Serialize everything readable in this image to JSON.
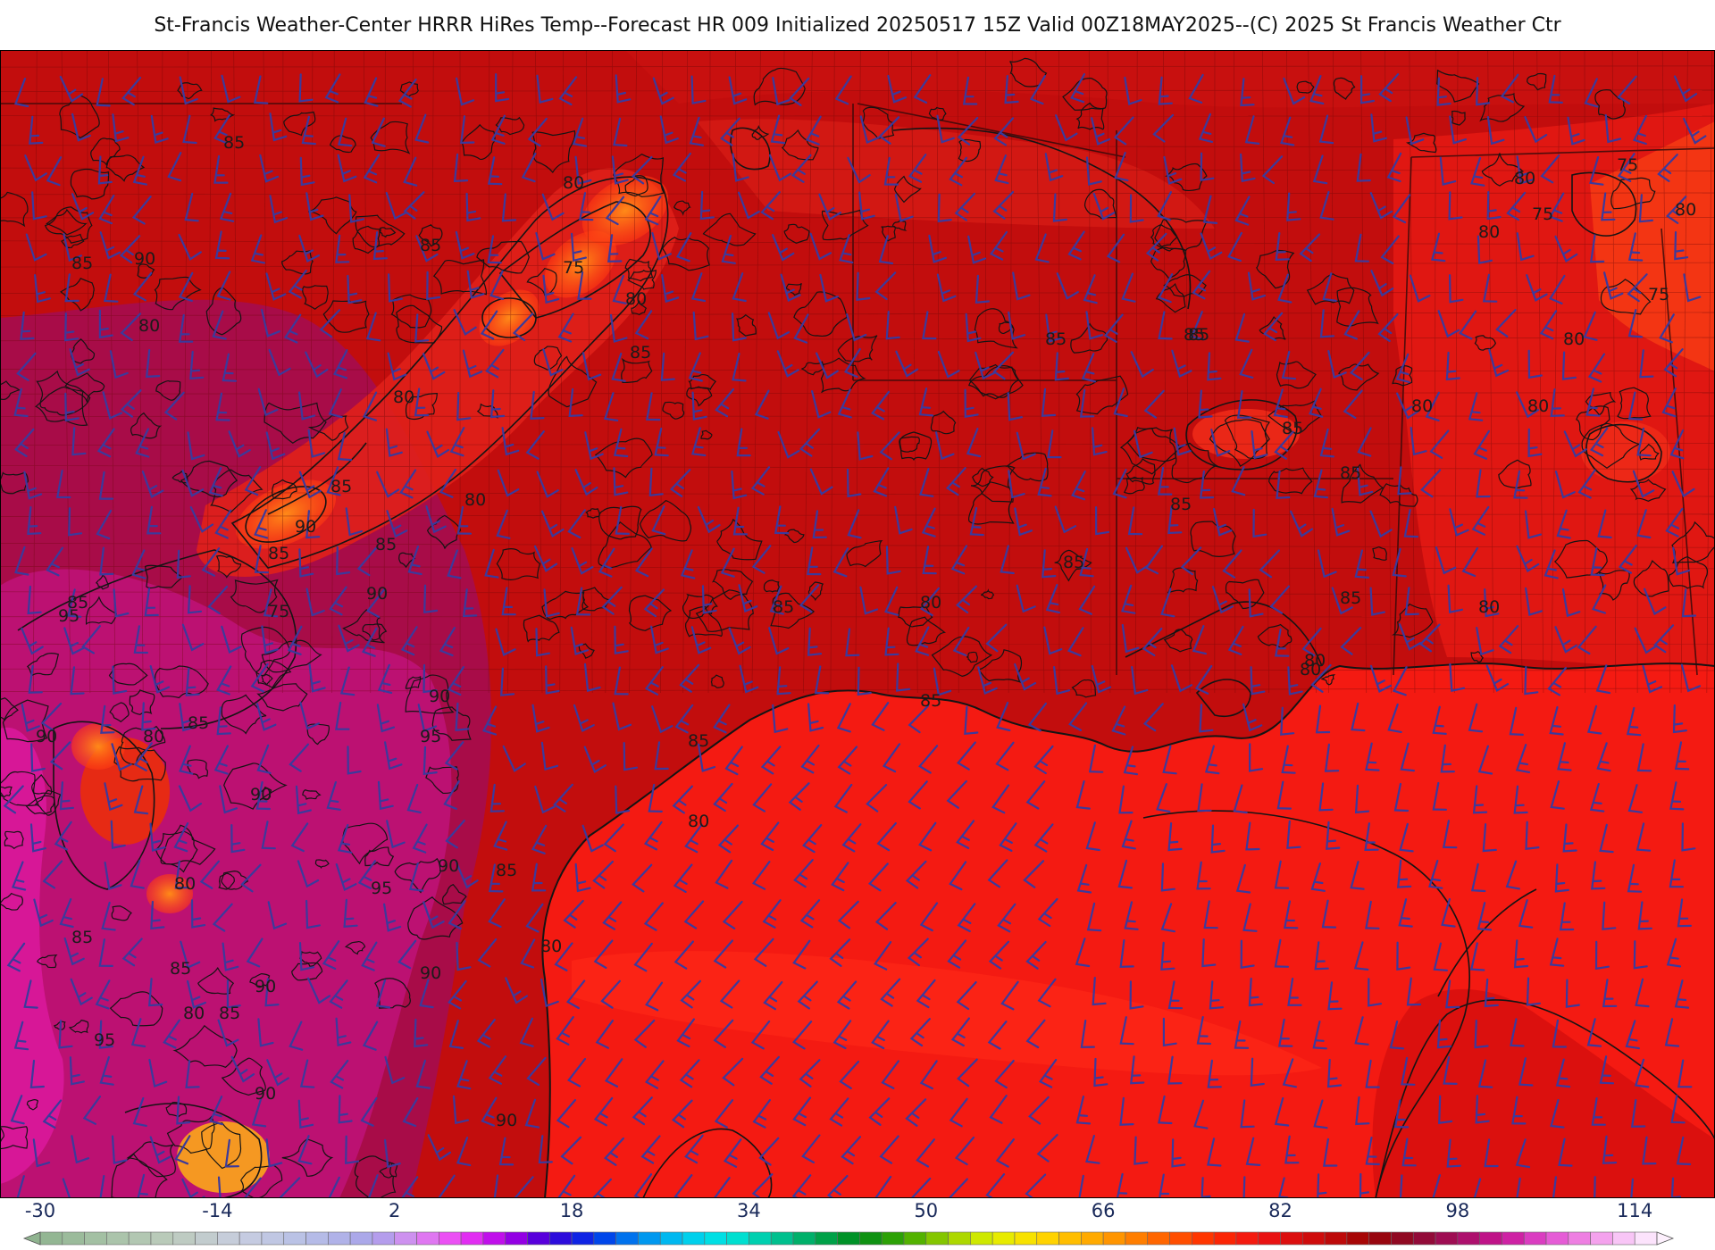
{
  "title": "St-Francis Weather-Center HRRR HiRes Temp--Forecast HR 009 Initialized 20250517 15Z Valid 00Z18MAY2025--(C) 2025 St Francis Weather Ctr",
  "map": {
    "variable": "2m temperature (F) with wind barbs",
    "region": "Texas / Gulf Coast",
    "colors": {
      "hot_magenta": "#c0137a",
      "deep_red": "#c00c0c",
      "red": "#e51212",
      "gulf_red": "#f41a12",
      "orange": "#ff7a12",
      "barb": "#3b3a9c",
      "contour": "#141414"
    },
    "contour_labels": [
      "85",
      "90",
      "85",
      "85",
      "80",
      "75",
      "80",
      "85",
      "80",
      "85",
      "90",
      "90",
      "80",
      "85",
      "85",
      "90",
      "95",
      "90",
      "75",
      "80",
      "85",
      "95",
      "90",
      "85",
      "80",
      "90",
      "95",
      "90",
      "85",
      "80",
      "95",
      "85",
      "80",
      "85",
      "90",
      "90",
      "90",
      "85",
      "80",
      "85",
      "80",
      "85",
      "85",
      "80",
      "85",
      "85",
      "85",
      "85",
      "80",
      "80",
      "80",
      "80",
      "80",
      "75",
      "75",
      "80",
      "80",
      "75",
      "80",
      "80",
      "85",
      "85",
      "85",
      "85"
    ]
  },
  "colorbar": {
    "ticks": [
      "-30",
      "-14",
      "2",
      "18",
      "34",
      "50",
      "66",
      "82",
      "98",
      "114"
    ],
    "tick_values": [
      -30,
      -14,
      2,
      18,
      34,
      50,
      66,
      82,
      98,
      114
    ],
    "min": -30,
    "max": 116,
    "step": 2,
    "stops": [
      [
        -30,
        "#8fb38f"
      ],
      [
        -24,
        "#a7c2a7"
      ],
      [
        -18,
        "#bccbbc"
      ],
      [
        -12,
        "#c8cde0"
      ],
      [
        -6,
        "#b7c0e6"
      ],
      [
        0,
        "#a8a3ea"
      ],
      [
        4,
        "#d98bf0"
      ],
      [
        8,
        "#f13cf5"
      ],
      [
        12,
        "#b000e8"
      ],
      [
        16,
        "#3a00d8"
      ],
      [
        20,
        "#0030e8"
      ],
      [
        24,
        "#0088ee"
      ],
      [
        28,
        "#00c8f0"
      ],
      [
        32,
        "#00e6e0"
      ],
      [
        36,
        "#00c8a0"
      ],
      [
        40,
        "#00a858"
      ],
      [
        44,
        "#008a18"
      ],
      [
        48,
        "#3aa800"
      ],
      [
        52,
        "#9cd000"
      ],
      [
        56,
        "#dff000"
      ],
      [
        60,
        "#ffdd00"
      ],
      [
        64,
        "#ffb400"
      ],
      [
        68,
        "#ff8a00"
      ],
      [
        72,
        "#ff5a00"
      ],
      [
        76,
        "#ff2a00"
      ],
      [
        80,
        "#f01414"
      ],
      [
        86,
        "#c80a0a"
      ],
      [
        90,
        "#9c0505"
      ],
      [
        94,
        "#8c0a2c"
      ],
      [
        98,
        "#a40e60"
      ],
      [
        102,
        "#c81495"
      ],
      [
        106,
        "#e04ad0"
      ],
      [
        110,
        "#f290e8"
      ],
      [
        114,
        "#fad6fa"
      ],
      [
        116,
        "#fdf0fd"
      ]
    ]
  }
}
